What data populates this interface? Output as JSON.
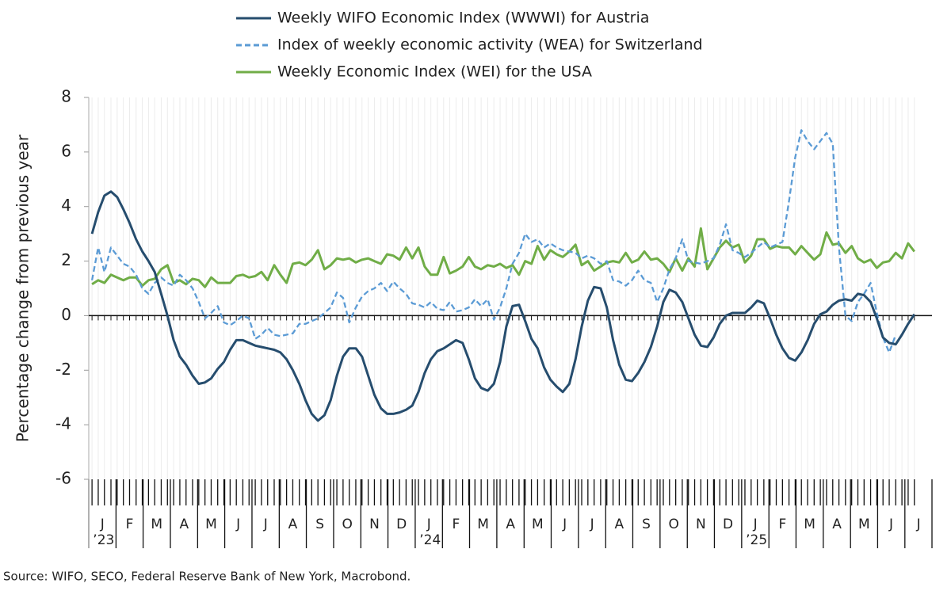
{
  "chart_data": {
    "type": "line",
    "y_label": "Percentage change from previous year",
    "source": "Source: WIFO, SECO, Federal Reserve Bank of New York, Macrobond.",
    "legend": "top",
    "xlim": [
      2023,
      2025.583
    ],
    "ylim": [
      -6,
      8
    ],
    "yticks": [
      -6,
      -4,
      -2,
      0,
      2,
      4,
      6,
      8
    ],
    "xticks": [
      {
        "value": 2023.042,
        "label": "J"
      },
      {
        "value": 2023.125,
        "label": "F"
      },
      {
        "value": 2023.208,
        "label": "M"
      },
      {
        "value": 2023.292,
        "label": "A"
      },
      {
        "value": 2023.375,
        "label": "M"
      },
      {
        "value": 2023.458,
        "label": "J"
      },
      {
        "value": 2023.542,
        "label": "J"
      },
      {
        "value": 2023.625,
        "label": "A"
      },
      {
        "value": 2023.708,
        "label": "S"
      },
      {
        "value": 2023.792,
        "label": "O"
      },
      {
        "value": 2023.875,
        "label": "N"
      },
      {
        "value": 2023.958,
        "label": "D"
      },
      {
        "value": 2024.042,
        "label": "J"
      },
      {
        "value": 2024.125,
        "label": "F"
      },
      {
        "value": 2024.208,
        "label": "M"
      },
      {
        "value": 2024.292,
        "label": "A"
      },
      {
        "value": 2024.375,
        "label": "M"
      },
      {
        "value": 2024.458,
        "label": "J"
      },
      {
        "value": 2024.542,
        "label": "J"
      },
      {
        "value": 2024.625,
        "label": "A"
      },
      {
        "value": 2024.708,
        "label": "S"
      },
      {
        "value": 2024.792,
        "label": "O"
      },
      {
        "value": 2024.875,
        "label": "N"
      },
      {
        "value": 2024.958,
        "label": "D"
      },
      {
        "value": 2025.042,
        "label": "J"
      },
      {
        "value": 2025.125,
        "label": "F"
      },
      {
        "value": 2025.208,
        "label": "M"
      },
      {
        "value": 2025.292,
        "label": "A"
      },
      {
        "value": 2025.375,
        "label": "M"
      },
      {
        "value": 2025.458,
        "label": "J"
      },
      {
        "value": 2025.542,
        "label": "J"
      }
    ],
    "year_ticks": [
      {
        "value": 2023.042,
        "label": "’23"
      },
      {
        "value": 2024.042,
        "label": "’24"
      },
      {
        "value": 2025.042,
        "label": "’25"
      }
    ],
    "grid": "x",
    "x": [
      2023.01,
      2023.029,
      2023.048,
      2023.068,
      2023.087,
      2023.106,
      2023.125,
      2023.145,
      2023.164,
      2023.183,
      2023.202,
      2023.222,
      2023.241,
      2023.26,
      2023.279,
      2023.298,
      2023.318,
      2023.337,
      2023.356,
      2023.375,
      2023.395,
      2023.414,
      2023.433,
      2023.452,
      2023.472,
      2023.491,
      2023.51,
      2023.529,
      2023.548,
      2023.568,
      2023.587,
      2023.606,
      2023.625,
      2023.645,
      2023.664,
      2023.683,
      2023.702,
      2023.722,
      2023.741,
      2023.76,
      2023.779,
      2023.798,
      2023.818,
      2023.837,
      2023.856,
      2023.875,
      2023.895,
      2023.914,
      2023.933,
      2023.952,
      2023.972,
      2023.991,
      2024.01,
      2024.029,
      2024.048,
      2024.068,
      2024.087,
      2024.106,
      2024.125,
      2024.145,
      2024.164,
      2024.183,
      2024.202,
      2024.222,
      2024.241,
      2024.26,
      2024.279,
      2024.298,
      2024.318,
      2024.337,
      2024.356,
      2024.375,
      2024.395,
      2024.414,
      2024.433,
      2024.452,
      2024.472,
      2024.491,
      2024.51,
      2024.529,
      2024.548,
      2024.568,
      2024.587,
      2024.606,
      2024.625,
      2024.645,
      2024.664,
      2024.683,
      2024.702,
      2024.722,
      2024.741,
      2024.76,
      2024.779,
      2024.798,
      2024.818,
      2024.837,
      2024.856,
      2024.875,
      2024.895,
      2024.914,
      2024.933,
      2024.952,
      2024.972,
      2024.991,
      2025.01,
      2025.029,
      2025.048,
      2025.068,
      2025.087,
      2025.106,
      2025.125,
      2025.145,
      2025.164,
      2025.183,
      2025.202,
      2025.222,
      2025.241,
      2025.26,
      2025.279,
      2025.298,
      2025.318,
      2025.337,
      2025.356,
      2025.375,
      2025.395,
      2025.414,
      2025.433,
      2025.452,
      2025.472,
      2025.491,
      2025.51,
      2025.529
    ],
    "series": [
      {
        "name": "Weekly WIFO Economic Index (WWWI) for Austria",
        "color": "#264d6e",
        "line_style": "solid",
        "values": [
          3.0,
          3.8,
          4.4,
          4.55,
          4.35,
          3.9,
          3.4,
          2.8,
          2.35,
          2.0,
          1.6,
          0.8,
          0.0,
          -0.9,
          -1.5,
          -1.8,
          -2.2,
          -2.5,
          -2.45,
          -2.3,
          -1.95,
          -1.7,
          -1.25,
          -0.9,
          -0.9,
          -1.0,
          -1.1,
          -1.15,
          -1.2,
          -1.25,
          -1.35,
          -1.6,
          -2.0,
          -2.5,
          -3.1,
          -3.6,
          -3.85,
          -3.65,
          -3.1,
          -2.2,
          -1.5,
          -1.2,
          -1.2,
          -1.5,
          -2.2,
          -2.9,
          -3.4,
          -3.6,
          -3.6,
          -3.55,
          -3.45,
          -3.3,
          -2.8,
          -2.1,
          -1.6,
          -1.3,
          -1.2,
          -1.05,
          -0.9,
          -1.0,
          -1.6,
          -2.3,
          -2.65,
          -2.75,
          -2.5,
          -1.7,
          -0.4,
          0.35,
          0.4,
          -0.2,
          -0.85,
          -1.2,
          -1.9,
          -2.35,
          -2.6,
          -2.8,
          -2.5,
          -1.6,
          -0.4,
          0.55,
          1.05,
          1.0,
          0.3,
          -0.9,
          -1.8,
          -2.35,
          -2.4,
          -2.1,
          -1.7,
          -1.15,
          -0.4,
          0.5,
          0.95,
          0.85,
          0.5,
          -0.1,
          -0.7,
          -1.1,
          -1.15,
          -0.8,
          -0.3,
          0.0,
          0.1,
          0.1,
          0.1,
          0.3,
          0.55,
          0.45,
          -0.1,
          -0.7,
          -1.2,
          -1.55,
          -1.65,
          -1.35,
          -0.9,
          -0.3,
          0.05,
          0.15,
          0.4,
          0.55,
          0.6,
          0.55,
          0.8,
          0.75,
          0.5,
          -0.1,
          -0.8,
          -1.0,
          -1.05,
          -0.7,
          -0.3,
          0.05
        ]
      },
      {
        "name": "Index of weekly economic activity (WEA) for Switzerland",
        "color": "#5b9bd5",
        "line_style": "dashed",
        "values": [
          1.3,
          2.5,
          1.6,
          2.5,
          2.2,
          1.9,
          1.8,
          1.5,
          1.0,
          0.8,
          1.2,
          1.4,
          1.2,
          1.1,
          1.5,
          1.3,
          1.0,
          0.5,
          -0.1,
          0.1,
          0.35,
          -0.25,
          -0.35,
          -0.2,
          0.0,
          -0.1,
          -0.85,
          -0.7,
          -0.45,
          -0.7,
          -0.75,
          -0.7,
          -0.65,
          -0.3,
          -0.3,
          -0.2,
          -0.1,
          0.1,
          0.3,
          0.85,
          0.65,
          -0.25,
          0.3,
          0.7,
          0.9,
          1.0,
          1.2,
          0.9,
          1.25,
          1.0,
          0.8,
          0.45,
          0.4,
          0.3,
          0.5,
          0.25,
          0.2,
          0.5,
          0.15,
          0.2,
          0.3,
          0.6,
          0.35,
          0.6,
          -0.15,
          0.3,
          1.0,
          1.9,
          2.3,
          3.0,
          2.7,
          2.8,
          2.5,
          2.65,
          2.5,
          2.4,
          2.35,
          2.3,
          2.1,
          2.2,
          2.1,
          1.9,
          2.0,
          1.3,
          1.25,
          1.1,
          1.3,
          1.65,
          1.3,
          1.2,
          0.5,
          1.0,
          1.7,
          2.1,
          2.8,
          2.0,
          1.95,
          1.9,
          2.0,
          2.1,
          2.6,
          3.35,
          2.4,
          2.3,
          2.15,
          2.3,
          2.5,
          2.7,
          2.5,
          2.6,
          2.7,
          4.2,
          5.8,
          6.8,
          6.4,
          6.1,
          6.4,
          6.7,
          6.3,
          2.5,
          0.0,
          -0.2,
          0.5,
          0.8,
          1.2,
          0.1,
          -0.8,
          -1.35,
          -0.7,
          null,
          null,
          null
        ]
      },
      {
        "name": "Weekly Economic Index (WEI) for the USA",
        "color": "#70ad47",
        "line_style": "solid",
        "values": [
          1.15,
          1.3,
          1.2,
          1.5,
          1.4,
          1.3,
          1.4,
          1.4,
          1.1,
          1.3,
          1.35,
          1.7,
          1.85,
          1.2,
          1.3,
          1.15,
          1.35,
          1.3,
          1.05,
          1.4,
          1.2,
          1.2,
          1.2,
          1.45,
          1.5,
          1.4,
          1.45,
          1.6,
          1.3,
          1.85,
          1.5,
          1.2,
          1.9,
          1.95,
          1.85,
          2.05,
          2.4,
          1.7,
          1.85,
          2.1,
          2.05,
          2.1,
          1.95,
          2.05,
          2.1,
          2.0,
          1.9,
          2.25,
          2.2,
          2.05,
          2.5,
          2.1,
          2.5,
          1.8,
          1.5,
          1.5,
          2.15,
          1.55,
          1.65,
          1.8,
          2.15,
          1.8,
          1.7,
          1.85,
          1.8,
          1.9,
          1.75,
          1.85,
          1.5,
          2.0,
          1.9,
          2.55,
          2.05,
          2.4,
          2.25,
          2.15,
          2.35,
          2.6,
          1.85,
          2.0,
          1.65,
          1.8,
          1.95,
          2.0,
          1.95,
          2.3,
          1.95,
          2.05,
          2.35,
          2.05,
          2.1,
          1.9,
          1.6,
          2.1,
          1.65,
          2.1,
          1.8,
          3.2,
          1.7,
          2.1,
          2.5,
          2.75,
          2.5,
          2.6,
          1.95,
          2.2,
          2.8,
          2.8,
          2.45,
          2.55,
          2.5,
          2.5,
          2.25,
          2.55,
          2.3,
          2.05,
          2.25,
          3.05,
          2.6,
          2.65,
          2.3,
          2.55,
          2.1,
          1.95,
          2.05,
          1.75,
          1.95,
          2.0,
          2.3,
          2.1,
          2.65,
          2.35
        ]
      }
    ]
  }
}
